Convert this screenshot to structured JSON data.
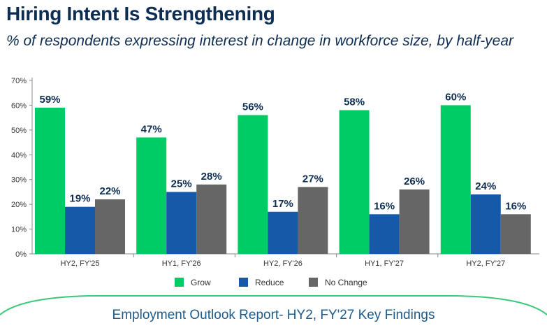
{
  "title": "Hiring Intent Is Strengthening",
  "subtitle": "% of respondents expressing interest in change in workforce size, by half-year",
  "footer": "Employment Outlook Report- HY2, FY'27 Key Findings",
  "colors": {
    "grow": "#00cc66",
    "reduce": "#1659a8",
    "no_change": "#666666",
    "title": "#0d2d52",
    "axis": "#888888",
    "footer_arc": "#39c878"
  },
  "chart_data": {
    "type": "bar",
    "categories": [
      "HY2, FY'25",
      "HY1, FY'26",
      "HY2, FY'26",
      "HY1, FY'27",
      "HY2, FY'27"
    ],
    "series": [
      {
        "name": "Grow",
        "values": [
          59,
          47,
          56,
          58,
          60
        ],
        "color": "#00cc66"
      },
      {
        "name": "Reduce",
        "values": [
          19,
          25,
          17,
          16,
          24
        ],
        "color": "#1659a8"
      },
      {
        "name": "No Change",
        "values": [
          22,
          28,
          27,
          26,
          16
        ],
        "color": "#666666"
      }
    ],
    "yticks": [
      "0%",
      "10%",
      "20%",
      "30%",
      "40%",
      "50%",
      "60%",
      "70%"
    ],
    "ylim": [
      0,
      70
    ],
    "value_suffix": "%",
    "legend_position": "bottom",
    "grid": false
  }
}
